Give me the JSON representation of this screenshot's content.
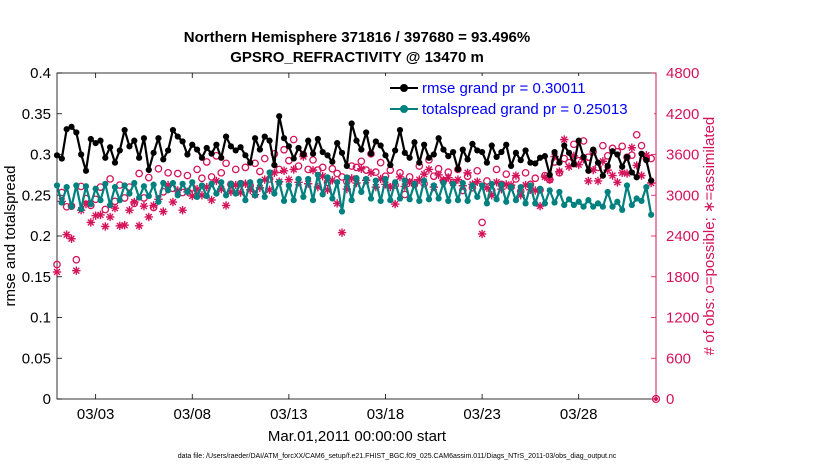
{
  "chart_data": {
    "type": "line",
    "title": "Northern Hemisphere 371816 / 397680 = 93.496%",
    "subtitle": "GPSRO_REFRACTIVITY @ 13470 m",
    "xlabel": "Mar.01,2011 00:00:00 start",
    "ylabel_left": "rmse and totalspread",
    "ylabel_right": "# of obs: o=possible; ∗=assimilated",
    "footer": "data file: /Users/raeder/DAI/ATM_forcXX/CAM6_setup/f.e21.FHIST_BGC.f09_025.CAM6assim.011/Diags_NTrS_2011-03/obs_diag_output.nc",
    "x_ticks": [
      3,
      8,
      13,
      18,
      23,
      28
    ],
    "x_tick_labels": [
      "03/03",
      "03/08",
      "03/13",
      "03/18",
      "03/23",
      "03/28"
    ],
    "xlim": [
      1.0,
      32.0
    ],
    "ylim_left": [
      0,
      0.4
    ],
    "yticks_left": [
      "0",
      "0.05",
      "0.1",
      "0.15",
      "0.2",
      "0.25",
      "0.3",
      "0.35",
      "0.4"
    ],
    "ylim_right": [
      0,
      4800
    ],
    "yticks_right": [
      "0",
      "600",
      "1200",
      "1800",
      "2400",
      "3000",
      "3600",
      "4200",
      "4800"
    ],
    "grid": false,
    "legend_position": "top-right",
    "colors": {
      "rmse": "#000000",
      "spread": "#00807e",
      "obs": "#d4145a",
      "legend_text": "#0000ff"
    },
    "series": [
      {
        "name": "rmse grand pr = 0.30011",
        "axis": "left",
        "marker": "circle-filled",
        "x": [
          1.0,
          1.25,
          1.5,
          1.75,
          2.0,
          2.25,
          2.5,
          2.75,
          3.0,
          3.25,
          3.5,
          3.75,
          4.0,
          4.25,
          4.5,
          4.75,
          5.0,
          5.25,
          5.5,
          5.75,
          6.0,
          6.25,
          6.5,
          6.75,
          7.0,
          7.25,
          7.5,
          7.75,
          8.0,
          8.25,
          8.5,
          8.75,
          9.0,
          9.25,
          9.5,
          9.75,
          10.0,
          10.25,
          10.5,
          10.75,
          11.0,
          11.25,
          11.5,
          11.75,
          12.0,
          12.25,
          12.5,
          12.75,
          13.0,
          13.25,
          13.5,
          13.75,
          14.0,
          14.25,
          14.5,
          14.75,
          15.0,
          15.25,
          15.5,
          15.75,
          16.0,
          16.25,
          16.5,
          16.75,
          17.0,
          17.25,
          17.5,
          17.75,
          18.0,
          18.25,
          18.5,
          18.75,
          19.0,
          19.25,
          19.5,
          19.75,
          20.0,
          20.25,
          20.5,
          20.75,
          21.0,
          21.25,
          21.5,
          21.75,
          22.0,
          22.25,
          22.5,
          22.75,
          23.0,
          23.25,
          23.5,
          23.75,
          24.0,
          24.25,
          24.5,
          24.75,
          25.0,
          25.25,
          25.5,
          25.75,
          26.0,
          26.25,
          26.5,
          26.75,
          27.0,
          27.25,
          27.5,
          27.75,
          28.0,
          28.25,
          28.5,
          28.75,
          29.0,
          29.25,
          29.5,
          29.75,
          30.0,
          30.25,
          30.5,
          30.75,
          31.0,
          31.25,
          31.5,
          31.75
        ],
        "values": [
          0.299,
          0.295,
          0.331,
          0.334,
          0.327,
          0.3,
          0.28,
          0.319,
          0.314,
          0.317,
          0.296,
          0.309,
          0.29,
          0.305,
          0.33,
          0.31,
          0.317,
          0.296,
          0.32,
          0.281,
          0.302,
          0.32,
          0.294,
          0.305,
          0.33,
          0.322,
          0.316,
          0.3,
          0.312,
          0.306,
          0.296,
          0.308,
          0.301,
          0.312,
          0.296,
          0.322,
          0.31,
          0.305,
          0.309,
          0.299,
          0.29,
          0.32,
          0.306,
          0.322,
          0.317,
          0.287,
          0.347,
          0.32,
          0.31,
          0.295,
          0.308,
          0.3,
          0.317,
          0.301,
          0.319,
          0.303,
          0.299,
          0.291,
          0.314,
          0.302,
          0.286,
          0.338,
          0.317,
          0.306,
          0.327,
          0.301,
          0.316,
          0.311,
          0.299,
          0.287,
          0.305,
          0.33,
          0.302,
          0.296,
          0.315,
          0.29,
          0.312,
          0.296,
          0.3,
          0.32,
          0.306,
          0.298,
          0.303,
          0.282,
          0.306,
          0.294,
          0.313,
          0.305,
          0.303,
          0.29,
          0.311,
          0.297,
          0.303,
          0.312,
          0.286,
          0.302,
          0.293,
          0.305,
          0.29,
          0.289,
          0.296,
          0.298,
          0.275,
          0.303,
          0.29,
          0.311,
          0.302,
          0.288,
          0.317,
          0.297,
          0.28,
          0.306,
          0.29,
          0.274,
          0.286,
          0.304,
          0.3,
          0.285,
          0.297,
          0.278,
          0.272,
          0.301,
          0.293,
          0.268
        ]
      },
      {
        "name": "totalspread grand pr = 0.25013",
        "axis": "left",
        "marker": "circle-filled",
        "x": [
          1.0,
          1.25,
          1.5,
          1.75,
          2.0,
          2.25,
          2.5,
          2.75,
          3.0,
          3.25,
          3.5,
          3.75,
          4.0,
          4.25,
          4.5,
          4.75,
          5.0,
          5.25,
          5.5,
          5.75,
          6.0,
          6.25,
          6.5,
          6.75,
          7.0,
          7.25,
          7.5,
          7.75,
          8.0,
          8.25,
          8.5,
          8.75,
          9.0,
          9.25,
          9.5,
          9.75,
          10.0,
          10.25,
          10.5,
          10.75,
          11.0,
          11.25,
          11.5,
          11.75,
          12.0,
          12.25,
          12.5,
          12.75,
          13.0,
          13.25,
          13.5,
          13.75,
          14.0,
          14.25,
          14.5,
          14.75,
          15.0,
          15.25,
          15.5,
          15.75,
          16.0,
          16.25,
          16.5,
          16.75,
          17.0,
          17.25,
          17.5,
          17.75,
          18.0,
          18.25,
          18.5,
          18.75,
          19.0,
          19.25,
          19.5,
          19.75,
          20.0,
          20.25,
          20.5,
          20.75,
          21.0,
          21.25,
          21.5,
          21.75,
          22.0,
          22.25,
          22.5,
          22.75,
          23.0,
          23.25,
          23.5,
          23.75,
          24.0,
          24.25,
          24.5,
          24.75,
          25.0,
          25.25,
          25.5,
          25.75,
          26.0,
          26.25,
          26.5,
          26.75,
          27.0,
          27.25,
          27.5,
          27.75,
          28.0,
          28.25,
          28.5,
          28.75,
          29.0,
          29.25,
          29.5,
          29.75,
          30.0,
          30.25,
          30.5,
          30.75,
          31.0,
          31.25,
          31.5,
          31.75
        ],
        "values": [
          0.262,
          0.241,
          0.26,
          0.236,
          0.262,
          0.233,
          0.261,
          0.239,
          0.258,
          0.244,
          0.264,
          0.238,
          0.26,
          0.244,
          0.262,
          0.252,
          0.265,
          0.247,
          0.261,
          0.249,
          0.263,
          0.242,
          0.265,
          0.256,
          0.265,
          0.25,
          0.264,
          0.254,
          0.266,
          0.248,
          0.262,
          0.249,
          0.264,
          0.252,
          0.266,
          0.25,
          0.264,
          0.252,
          0.265,
          0.244,
          0.266,
          0.25,
          0.267,
          0.248,
          0.278,
          0.252,
          0.266,
          0.243,
          0.262,
          0.244,
          0.27,
          0.248,
          0.27,
          0.244,
          0.275,
          0.251,
          0.272,
          0.246,
          0.266,
          0.23,
          0.272,
          0.244,
          0.271,
          0.254,
          0.27,
          0.246,
          0.268,
          0.243,
          0.27,
          0.244,
          0.266,
          0.246,
          0.268,
          0.245,
          0.264,
          0.243,
          0.268,
          0.245,
          0.262,
          0.246,
          0.265,
          0.243,
          0.264,
          0.244,
          0.265,
          0.243,
          0.262,
          0.248,
          0.262,
          0.24,
          0.264,
          0.245,
          0.263,
          0.242,
          0.26,
          0.244,
          0.26,
          0.24,
          0.262,
          0.24,
          0.258,
          0.24,
          0.256,
          0.241,
          0.254,
          0.238,
          0.245,
          0.238,
          0.242,
          0.236,
          0.244,
          0.236,
          0.24,
          0.236,
          0.254,
          0.236,
          0.242,
          0.232,
          0.262,
          0.238,
          0.246,
          0.243,
          0.26,
          0.226
        ]
      },
      {
        "name": "possible",
        "axis": "right",
        "marker": "circle-open",
        "x": [
          1.0,
          1.25,
          1.5,
          1.75,
          2.0,
          2.25,
          2.5,
          2.75,
          3.0,
          3.25,
          3.5,
          3.75,
          4.0,
          4.25,
          4.5,
          4.75,
          5.0,
          5.25,
          5.5,
          5.75,
          6.0,
          6.25,
          6.5,
          6.75,
          7.0,
          7.25,
          7.5,
          7.75,
          8.0,
          8.25,
          8.5,
          8.75,
          9.0,
          9.25,
          9.5,
          9.75,
          10.0,
          10.25,
          10.5,
          10.75,
          11.0,
          11.25,
          11.5,
          11.75,
          12.0,
          12.25,
          12.5,
          12.75,
          13.0,
          13.25,
          13.5,
          13.75,
          14.0,
          14.25,
          14.5,
          14.75,
          15.0,
          15.25,
          15.5,
          15.75,
          16.0,
          16.25,
          16.5,
          16.75,
          17.0,
          17.25,
          17.5,
          17.75,
          18.0,
          18.25,
          18.5,
          18.75,
          19.0,
          19.25,
          19.5,
          19.75,
          20.0,
          20.25,
          20.5,
          20.75,
          21.0,
          21.25,
          21.5,
          21.75,
          22.0,
          22.25,
          22.5,
          22.75,
          23.0,
          23.25,
          23.5,
          23.75,
          24.0,
          24.25,
          24.5,
          24.75,
          25.0,
          25.25,
          25.5,
          25.75,
          26.0,
          26.25,
          26.5,
          26.75,
          27.0,
          27.25,
          27.5,
          27.75,
          28.0,
          28.25,
          28.5,
          28.75,
          29.0,
          29.25,
          29.5,
          29.75,
          30.0,
          30.25,
          30.5,
          30.75,
          31.0,
          31.25,
          31.5,
          31.75
        ],
        "values": [
          1980,
          3040,
          2830,
          2840,
          2050,
          3130,
          2950,
          2850,
          2940,
          3120,
          2790,
          3240,
          2910,
          3150,
          2960,
          3120,
          2880,
          3320,
          2960,
          3260,
          2820,
          3390,
          3050,
          3330,
          3100,
          3320,
          3040,
          3290,
          3110,
          3380,
          3250,
          3490,
          3270,
          3580,
          3330,
          3470,
          3160,
          3380,
          3170,
          3410,
          3140,
          3470,
          3350,
          3540,
          3240,
          3610,
          3380,
          3670,
          3510,
          3820,
          3430,
          3600,
          3380,
          3520,
          3370,
          3410,
          3190,
          3390,
          3320,
          3270,
          3200,
          3430,
          3410,
          3500,
          3370,
          3610,
          3340,
          3480,
          3280,
          3370,
          3150,
          3330,
          3010,
          3270,
          3160,
          3430,
          3170,
          3520,
          3280,
          3390,
          3210,
          3340,
          3190,
          3380,
          3070,
          3280,
          3110,
          3360,
          2600,
          3210,
          3070,
          3380,
          3160,
          3310,
          3120,
          3240,
          3060,
          3330,
          3160,
          3250,
          3080,
          3290,
          3230,
          3490,
          3330,
          3540,
          3480,
          3750,
          3510,
          3800,
          3560,
          3640,
          3410,
          3730,
          3580,
          3690,
          3640,
          3720,
          3560,
          3590,
          3890,
          3730,
          3540,
          3540
        ]
      },
      {
        "name": "assimilated",
        "axis": "right",
        "marker": "asterisk",
        "x": [
          1.0,
          1.25,
          1.5,
          1.75,
          2.0,
          2.25,
          2.5,
          2.75,
          3.0,
          3.25,
          3.5,
          3.75,
          4.0,
          4.25,
          4.5,
          4.75,
          5.0,
          5.25,
          5.5,
          5.75,
          6.0,
          6.25,
          6.5,
          6.75,
          7.0,
          7.25,
          7.5,
          7.75,
          8.0,
          8.25,
          8.5,
          8.75,
          9.0,
          9.25,
          9.5,
          9.75,
          10.0,
          10.25,
          10.5,
          10.75,
          11.0,
          11.25,
          11.5,
          11.75,
          12.0,
          12.25,
          12.5,
          12.75,
          13.0,
          13.25,
          13.5,
          13.75,
          14.0,
          14.25,
          14.5,
          14.75,
          15.0,
          15.25,
          15.5,
          15.75,
          16.0,
          16.25,
          16.5,
          16.75,
          17.0,
          17.25,
          17.5,
          17.75,
          18.0,
          18.25,
          18.5,
          18.75,
          19.0,
          19.25,
          19.5,
          19.75,
          20.0,
          20.25,
          20.5,
          20.75,
          21.0,
          21.25,
          21.5,
          21.75,
          22.0,
          22.25,
          22.5,
          22.75,
          23.0,
          23.25,
          23.5,
          23.75,
          24.0,
          24.25,
          24.5,
          24.75,
          25.0,
          25.25,
          25.5,
          25.75,
          26.0,
          26.25,
          26.5,
          26.75,
          27.0,
          27.25,
          27.5,
          27.75,
          28.0,
          28.25,
          28.5,
          28.75,
          29.0,
          29.25,
          29.5,
          29.75,
          30.0,
          30.25,
          30.5,
          30.75,
          31.0,
          31.25,
          31.5,
          31.75
        ],
        "values": [
          1870,
          2910,
          2420,
          2360,
          1890,
          2780,
          2870,
          2600,
          2700,
          2710,
          2540,
          2680,
          2810,
          2550,
          2560,
          2780,
          2900,
          2550,
          2840,
          2680,
          2850,
          2940,
          2760,
          3150,
          2900,
          3070,
          2780,
          3050,
          2990,
          3090,
          3000,
          3120,
          2930,
          3210,
          3090,
          2850,
          3050,
          3150,
          3040,
          3170,
          3080,
          3010,
          3110,
          3230,
          3080,
          3330,
          3200,
          3360,
          3230,
          3380,
          3190,
          3570,
          3170,
          3370,
          3120,
          3280,
          3080,
          3220,
          2880,
          2450,
          3090,
          3250,
          3180,
          3390,
          3220,
          3330,
          3120,
          3240,
          3160,
          3120,
          2870,
          3270,
          3130,
          3190,
          3180,
          3230,
          3310,
          3380,
          3120,
          3300,
          3220,
          3260,
          3180,
          3230,
          3140,
          3330,
          3160,
          3200,
          2430,
          3110,
          3000,
          3190,
          3090,
          3160,
          3150,
          3290,
          3000,
          3150,
          3080,
          3070,
          2840,
          3270,
          3230,
          3570,
          3350,
          3820,
          3420,
          3580,
          3450,
          3530,
          3210,
          3370,
          3210,
          3500,
          3370,
          3290,
          3190,
          3330,
          3320,
          3700,
          3440,
          3290,
          3590,
          3180
        ]
      }
    ]
  }
}
